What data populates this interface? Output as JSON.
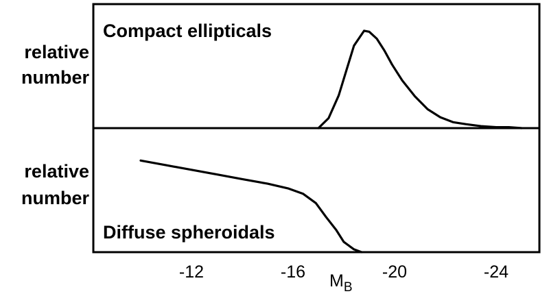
{
  "chart_data": [
    {
      "type": "line",
      "panel": "top",
      "title": "Compact ellipticals",
      "ylabel": [
        "relative",
        "number"
      ],
      "xlim": [
        -8,
        -25
      ],
      "x_reversed": true,
      "y_units": "relative",
      "ylim": [
        0,
        1.0
      ],
      "series": [
        {
          "x": [
            -17.0,
            -17.4,
            -17.8,
            -18.1,
            -18.4,
            -18.8,
            -19.0,
            -19.3,
            -19.6,
            -19.9,
            -20.3,
            -20.8,
            -21.3,
            -21.8,
            -22.3,
            -22.8,
            -23.4,
            -24.0,
            -24.5,
            -25.0
          ],
          "y": [
            0.0,
            0.1,
            0.33,
            0.58,
            0.83,
            0.98,
            0.97,
            0.9,
            0.78,
            0.64,
            0.48,
            0.32,
            0.19,
            0.11,
            0.06,
            0.04,
            0.02,
            0.01,
            0.01,
            0.0
          ]
        }
      ]
    },
    {
      "type": "line",
      "panel": "bottom",
      "title": "Diffuse spheroidals",
      "ylabel": [
        "relative",
        "number"
      ],
      "xlabel_main": "M",
      "xlabel_sub": "B",
      "xlim": [
        -8,
        -25
      ],
      "x_reversed": true,
      "xticks": [
        -12,
        -16,
        -20,
        -24
      ],
      "y_units": "relative",
      "ylim": [
        0,
        1.0
      ],
      "series": [
        {
          "x": [
            -10.0,
            -11.0,
            -12.0,
            -13.0,
            -14.0,
            -15.0,
            -15.8,
            -16.4,
            -16.9,
            -17.3,
            -17.7,
            -18.0,
            -18.4,
            -18.7
          ],
          "y": [
            0.99,
            0.94,
            0.89,
            0.84,
            0.79,
            0.74,
            0.69,
            0.63,
            0.53,
            0.38,
            0.24,
            0.11,
            0.03,
            0.0
          ]
        }
      ]
    }
  ]
}
